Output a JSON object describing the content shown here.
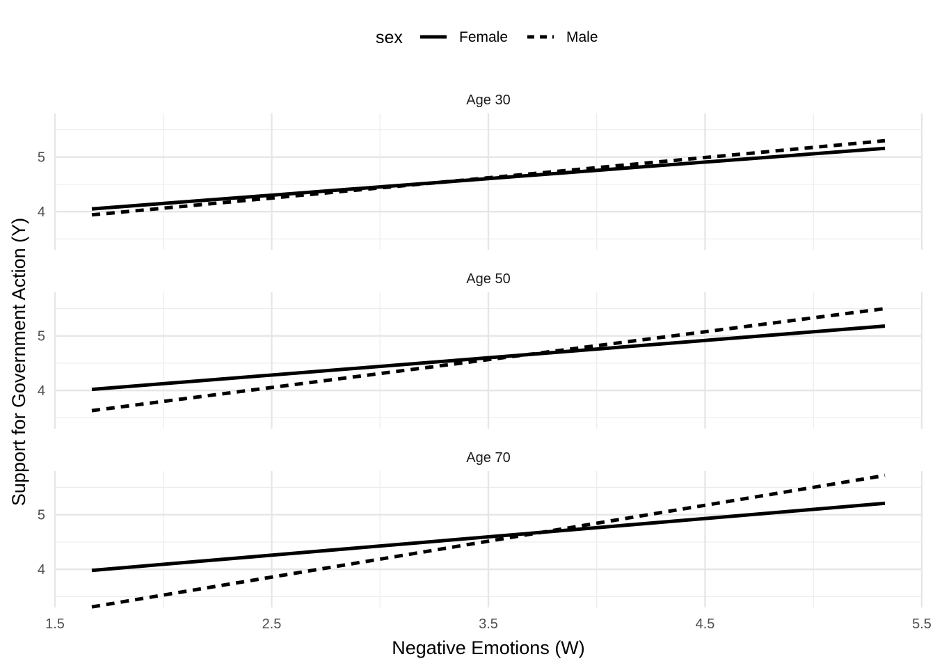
{
  "chart_data": {
    "type": "line",
    "xlabel": "Negative Emotions (W)",
    "ylabel": "Support for Government Action (Y)",
    "legend": {
      "title": "sex",
      "position": "top"
    },
    "xlim": [
      1.5,
      5.5
    ],
    "xticks": [
      "1.5",
      "2.5",
      "3.5",
      "4.5",
      "5.5"
    ],
    "ylim": [
      3.3,
      5.8
    ],
    "yticks": [
      "4",
      "5"
    ],
    "grid": true,
    "series_styles": [
      {
        "name": "Female",
        "dash": "solid",
        "color": "#000000"
      },
      {
        "name": "Male",
        "dash": "dashed",
        "color": "#000000"
      }
    ],
    "panels": [
      {
        "label": "Age 30",
        "series": [
          {
            "name": "Female",
            "x": [
              1.67,
              5.33
            ],
            "y": [
              4.05,
              5.16
            ]
          },
          {
            "name": "Male",
            "x": [
              1.67,
              5.33
            ],
            "y": [
              3.94,
              5.3
            ]
          }
        ]
      },
      {
        "label": "Age 50",
        "series": [
          {
            "name": "Female",
            "x": [
              1.67,
              5.33
            ],
            "y": [
              4.02,
              5.18
            ]
          },
          {
            "name": "Male",
            "x": [
              1.67,
              5.33
            ],
            "y": [
              3.63,
              5.5
            ]
          }
        ]
      },
      {
        "label": "Age 70",
        "series": [
          {
            "name": "Female",
            "x": [
              1.67,
              5.33
            ],
            "y": [
              3.98,
              5.21
            ]
          },
          {
            "name": "Male",
            "x": [
              1.67,
              5.33
            ],
            "y": [
              3.31,
              5.72
            ]
          }
        ]
      }
    ]
  }
}
